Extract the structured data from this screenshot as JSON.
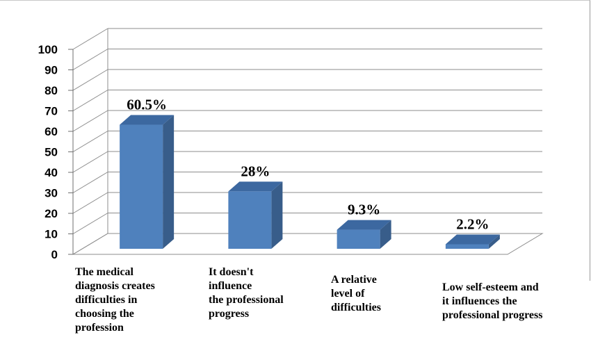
{
  "chart_data": {
    "type": "bar",
    "categories": [
      "The medical\ndiagnosis creates\ndifficulties in\nchoosing the\nprofession",
      "It doesn't\ninfluence\nthe professional\nprogress",
      "A relative\nlevel of\ndifficulties",
      "Low self-esteem and\nit influences the\nprofessional progress"
    ],
    "values": [
      60.5,
      28,
      9.3,
      2.2
    ],
    "data_labels": [
      "60.5%",
      "28%",
      "9.3%",
      "2.2%"
    ],
    "y_ticks": [
      "0",
      "10",
      "20",
      "30",
      "40",
      "50",
      "60",
      "70",
      "80",
      "90",
      "100"
    ],
    "ylim": [
      0,
      100
    ],
    "grid": true,
    "legend": "none",
    "three_d": true,
    "colors": {
      "bar_front": "#4f81bd",
      "bar_side": "#385d8a",
      "bar_top": "#3c68a0",
      "gridline": "#8c8c8c",
      "axis": "#6e6e6e"
    }
  }
}
